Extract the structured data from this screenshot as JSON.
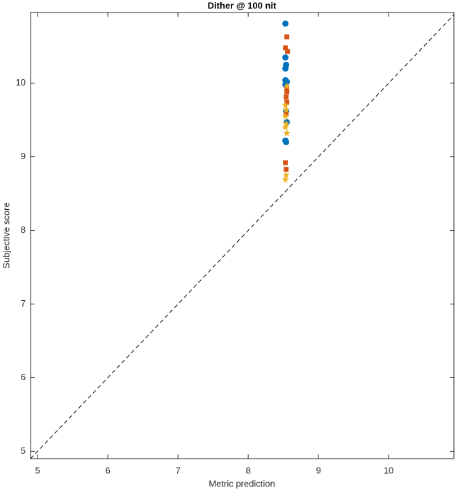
{
  "chart_data": {
    "type": "scatter",
    "title": "Dither @ 100 nit",
    "x_label": "Metric prediction",
    "y_label": "Subjective score",
    "xlim": [
      4.9,
      10.93
    ],
    "ylim": [
      4.9,
      10.96
    ],
    "xticks": [
      5,
      6,
      7,
      8,
      9,
      10
    ],
    "yticks": [
      5,
      6,
      7,
      8,
      9,
      10
    ],
    "grid": false,
    "identity_line": true,
    "series": [
      {
        "color": "#0072BD",
        "marker": "circle",
        "x": [
          8.53,
          8.53,
          8.54,
          8.53,
          8.53,
          8.55,
          8.53,
          8.54,
          8.55,
          8.53,
          8.54
        ],
        "values": [
          10.81,
          10.35,
          10.25,
          10.2,
          10.04,
          10.02,
          9.98,
          9.62,
          9.47,
          9.22,
          9.2
        ]
      },
      {
        "color": "#D95319",
        "marker": "square",
        "x": [
          8.55,
          8.53,
          8.56,
          8.55,
          8.55,
          8.54,
          8.55,
          8.54,
          8.53,
          8.54
        ],
        "values": [
          10.63,
          10.48,
          10.43,
          9.92,
          9.88,
          9.81,
          9.74,
          9.58,
          8.92,
          8.83
        ]
      },
      {
        "color": "#EDB120",
        "marker": "star",
        "x": [
          8.55,
          8.53,
          8.54,
          8.53,
          8.54,
          8.53,
          8.55,
          8.54,
          8.53
        ],
        "values": [
          9.96,
          9.7,
          9.64,
          9.55,
          9.45,
          9.4,
          9.32,
          8.75,
          8.69
        ]
      }
    ]
  }
}
